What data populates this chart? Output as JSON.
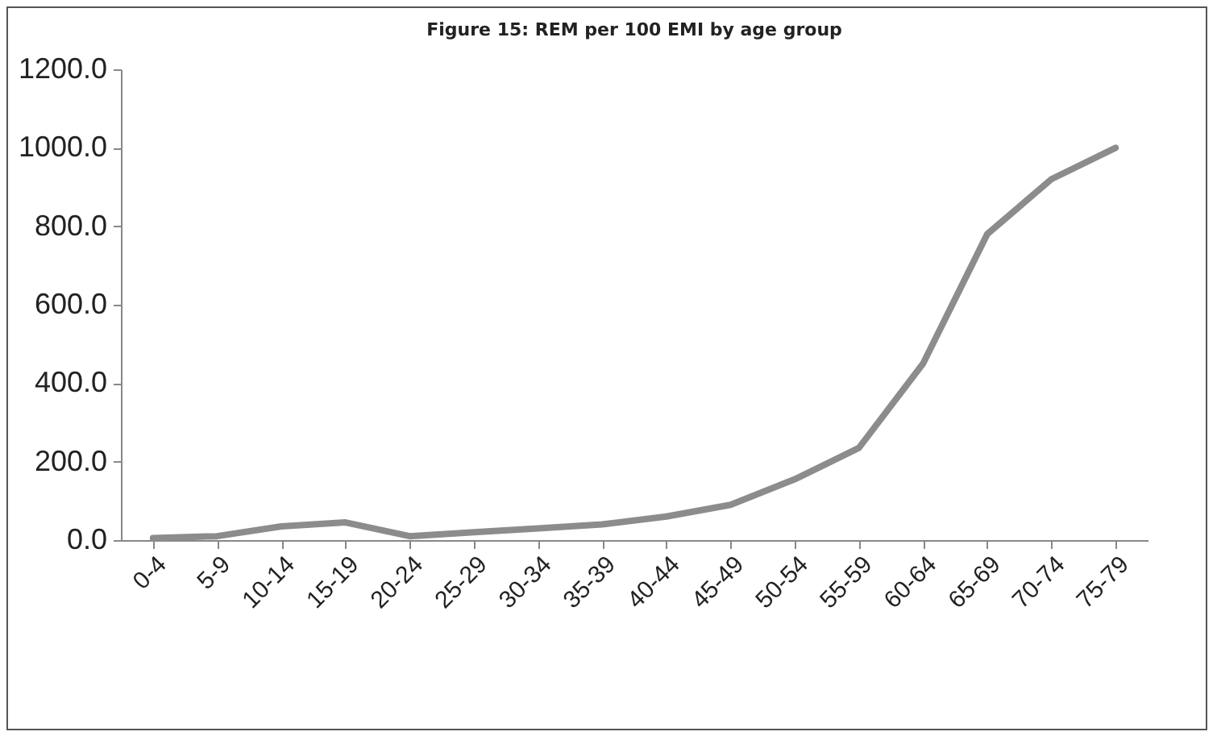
{
  "chart_data": {
    "type": "line",
    "title": "Figure 15:  REM  per  100 EMI by age group",
    "categories": [
      "0-4",
      "5-9",
      "10-14",
      "15-19",
      "20-24",
      "25-29",
      "30-34",
      "35-39",
      "40-44",
      "45-49",
      "50-54",
      "55-59",
      "60-64",
      "65-69",
      "70-74",
      "75-79"
    ],
    "series": [
      {
        "color": "#8c8c8c",
        "values": [
          5,
          10,
          35,
          45,
          10,
          20,
          30,
          40,
          60,
          90,
          155,
          235,
          450,
          780,
          920,
          1000
        ]
      }
    ],
    "ylim": [
      0,
      1200
    ],
    "yticks": [
      {
        "value": 0,
        "label": "0.0"
      },
      {
        "value": 200,
        "label": "200.0"
      },
      {
        "value": 400,
        "label": "400.0"
      },
      {
        "value": 600,
        "label": "600.0"
      },
      {
        "value": 800,
        "label": "800.0"
      },
      {
        "value": 1000,
        "label": "1000.0"
      },
      {
        "value": 1200,
        "label": "1200.0"
      }
    ],
    "grid": false,
    "legend": false,
    "marker": "none",
    "line_style": "solid"
  }
}
